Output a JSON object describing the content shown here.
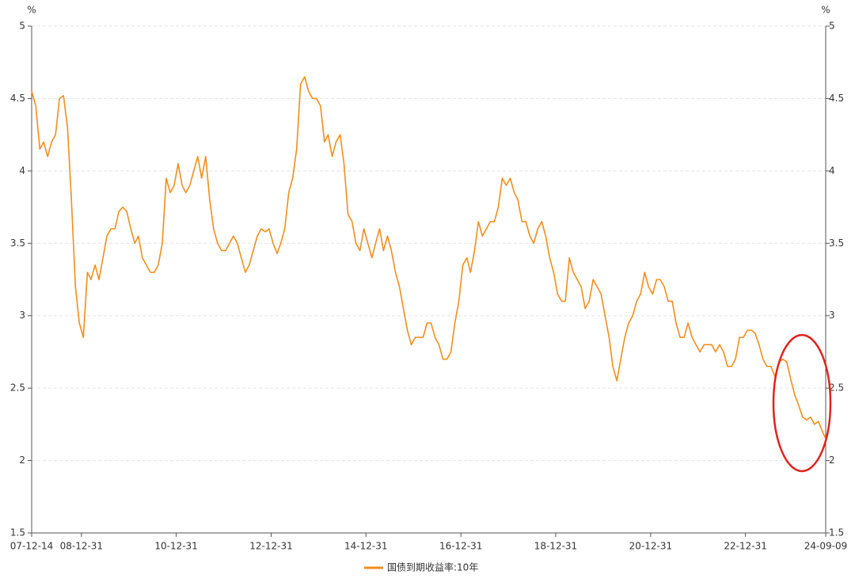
{
  "chart_data": {
    "type": "line",
    "ylabel": "%",
    "y2label": "%",
    "xlim": [
      "07-12-14",
      "24-09-09"
    ],
    "xticks": [
      "07-12-14",
      "08-12-31",
      "10-12-31",
      "12-12-31",
      "14-12-31",
      "16-12-31",
      "18-12-31",
      "20-12-31",
      "22-12-31",
      "24-09-09"
    ],
    "ylim": [
      1.5,
      5
    ],
    "yticks": [
      1.5,
      2,
      2.5,
      3,
      3.5,
      4,
      4.5,
      5
    ],
    "y2lim": [
      1.5,
      5
    ],
    "y2ticks": [
      1.5,
      2,
      2.5,
      3,
      3.5,
      4,
      4.5,
      5
    ],
    "grid": true,
    "x": [
      "07-12-14",
      "08-01",
      "08-02",
      "08-03",
      "08-04",
      "08-05",
      "08-06",
      "08-07",
      "08-08",
      "08-09",
      "08-10",
      "08-11",
      "08-12",
      "09-01",
      "09-02",
      "09-03",
      "09-04",
      "09-05",
      "09-06",
      "09-07",
      "09-08",
      "09-09",
      "09-10",
      "09-11",
      "09-12",
      "10-01",
      "10-02",
      "10-03",
      "10-04",
      "10-05",
      "10-06",
      "10-07",
      "10-08",
      "10-09",
      "10-10",
      "10-11",
      "10-12",
      "11-01",
      "11-02",
      "11-03",
      "11-04",
      "11-05",
      "11-06",
      "11-07",
      "11-08",
      "11-09",
      "11-10",
      "11-11",
      "11-12",
      "12-01",
      "12-02",
      "12-03",
      "12-04",
      "12-05",
      "12-06",
      "12-07",
      "12-08",
      "12-09",
      "12-10",
      "12-11",
      "12-12",
      "13-01",
      "13-02",
      "13-03",
      "13-04",
      "13-05",
      "13-06",
      "13-07",
      "13-08",
      "13-09",
      "13-10",
      "13-11",
      "13-12",
      "14-01",
      "14-02",
      "14-03",
      "14-04",
      "14-05",
      "14-06",
      "14-07",
      "14-08",
      "14-09",
      "14-10",
      "14-11",
      "14-12",
      "15-01",
      "15-02",
      "15-03",
      "15-04",
      "15-05",
      "15-06",
      "15-07",
      "15-08",
      "15-09",
      "15-10",
      "15-11",
      "15-12",
      "16-01",
      "16-02",
      "16-03",
      "16-04",
      "16-05",
      "16-06",
      "16-07",
      "16-08",
      "16-09",
      "16-10",
      "16-11",
      "16-12",
      "17-01",
      "17-02",
      "17-03",
      "17-04",
      "17-05",
      "17-06",
      "17-07",
      "17-08",
      "17-09",
      "17-10",
      "17-11",
      "17-12",
      "18-01",
      "18-02",
      "18-03",
      "18-04",
      "18-05",
      "18-06",
      "18-07",
      "18-08",
      "18-09",
      "18-10",
      "18-11",
      "18-12",
      "19-01",
      "19-02",
      "19-03",
      "19-04",
      "19-05",
      "19-06",
      "19-07",
      "19-08",
      "19-09",
      "19-10",
      "19-11",
      "19-12",
      "20-01",
      "20-02",
      "20-03",
      "20-04",
      "20-05",
      "20-06",
      "20-07",
      "20-08",
      "20-09",
      "20-10",
      "20-11",
      "20-12",
      "21-01",
      "21-02",
      "21-03",
      "21-04",
      "21-05",
      "21-06",
      "21-07",
      "21-08",
      "21-09",
      "21-10",
      "21-11",
      "21-12",
      "22-01",
      "22-02",
      "22-03",
      "22-04",
      "22-05",
      "22-06",
      "22-07",
      "22-08",
      "22-09",
      "22-10",
      "22-11",
      "22-12",
      "23-01",
      "23-02",
      "23-03",
      "23-04",
      "23-05",
      "23-06",
      "23-07",
      "23-08",
      "23-09",
      "23-10",
      "23-11",
      "23-12",
      "24-01",
      "24-02",
      "24-03",
      "24-04",
      "24-05",
      "24-06",
      "24-07",
      "24-08",
      "24-09-09"
    ],
    "series": [
      {
        "name": "国债到期收益率:10年",
        "color": "#f28e1c",
        "values": [
          4.55,
          4.45,
          4.15,
          4.2,
          4.1,
          4.2,
          4.25,
          4.5,
          4.52,
          4.3,
          3.8,
          3.2,
          2.95,
          2.85,
          3.3,
          3.25,
          3.35,
          3.25,
          3.4,
          3.55,
          3.6,
          3.6,
          3.72,
          3.75,
          3.72,
          3.6,
          3.5,
          3.55,
          3.4,
          3.35,
          3.3,
          3.3,
          3.35,
          3.5,
          3.95,
          3.85,
          3.9,
          4.05,
          3.9,
          3.85,
          3.9,
          4.0,
          4.1,
          3.95,
          4.1,
          3.8,
          3.6,
          3.5,
          3.45,
          3.45,
          3.5,
          3.55,
          3.5,
          3.4,
          3.3,
          3.35,
          3.45,
          3.55,
          3.6,
          3.58,
          3.6,
          3.5,
          3.43,
          3.5,
          3.6,
          3.85,
          3.95,
          4.15,
          4.6,
          4.65,
          4.55,
          4.5,
          4.5,
          4.45,
          4.2,
          4.25,
          4.1,
          4.2,
          4.25,
          4.05,
          3.7,
          3.65,
          3.5,
          3.45,
          3.6,
          3.5,
          3.4,
          3.5,
          3.6,
          3.45,
          3.55,
          3.45,
          3.3,
          3.2,
          3.05,
          2.9,
          2.8,
          2.85,
          2.85,
          2.85,
          2.95,
          2.95,
          2.85,
          2.8,
          2.7,
          2.7,
          2.75,
          2.95,
          3.1,
          3.35,
          3.4,
          3.3,
          3.45,
          3.65,
          3.55,
          3.6,
          3.65,
          3.65,
          3.75,
          3.95,
          3.9,
          3.95,
          3.85,
          3.8,
          3.65,
          3.65,
          3.55,
          3.5,
          3.6,
          3.65,
          3.55,
          3.4,
          3.3,
          3.15,
          3.1,
          3.1,
          3.4,
          3.3,
          3.25,
          3.2,
          3.05,
          3.1,
          3.25,
          3.2,
          3.15,
          3.0,
          2.85,
          2.65,
          2.55,
          2.7,
          2.85,
          2.95,
          3.0,
          3.1,
          3.15,
          3.3,
          3.2,
          3.15,
          3.25,
          3.25,
          3.2,
          3.1,
          3.1,
          2.95,
          2.85,
          2.85,
          2.95,
          2.85,
          2.8,
          2.75,
          2.8,
          2.8,
          2.8,
          2.75,
          2.8,
          2.75,
          2.65,
          2.65,
          2.7,
          2.85,
          2.85,
          2.9,
          2.9,
          2.88,
          2.8,
          2.7,
          2.65,
          2.65,
          2.58,
          2.68,
          2.7,
          2.68,
          2.56,
          2.45,
          2.38,
          2.3,
          2.28,
          2.3,
          2.25,
          2.27,
          2.2,
          2.15
        ]
      }
    ]
  }
}
